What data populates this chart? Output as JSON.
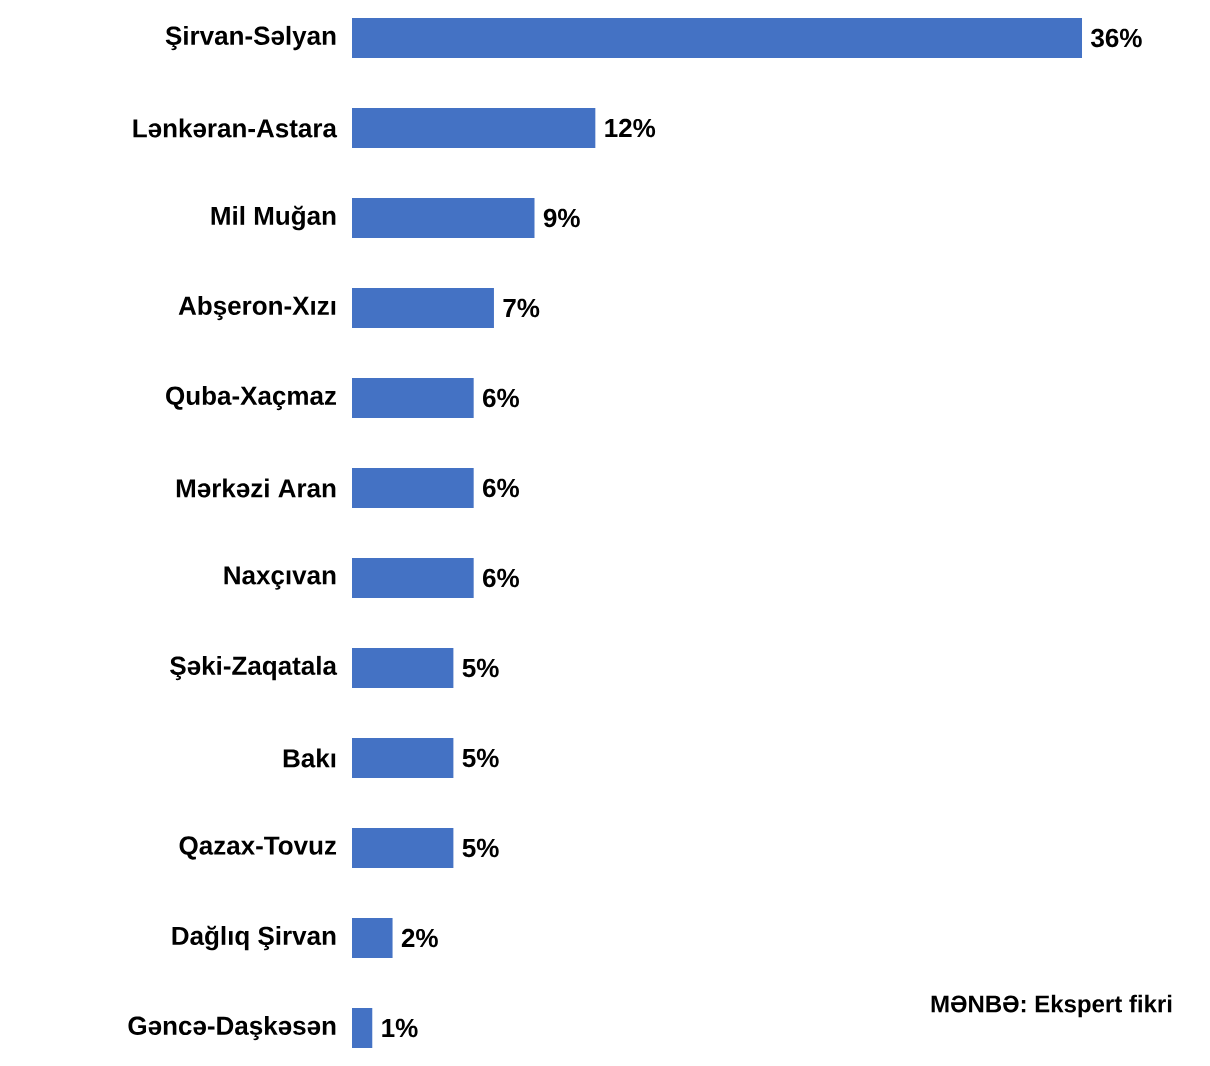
{
  "chart_data": {
    "type": "bar",
    "orientation": "horizontal",
    "categories": [
      "Şirvan-Səlyan",
      "Lənkəran-Astara",
      "Mil Muğan",
      "Abşeron-Xızı",
      "Quba-Xaçmaz",
      "Mərkəzi Aran",
      "Naxçıvan",
      "Şəki-Zaqatala",
      "Bakı",
      "Qazax-Tovuz",
      "Dağlıq Şirvan",
      "Gəncə-Daşkəsən"
    ],
    "values": [
      36,
      12,
      9,
      7,
      6,
      6,
      6,
      5,
      5,
      5,
      2,
      1
    ],
    "value_labels": [
      "36%",
      "12%",
      "9%",
      "7%",
      "6%",
      "6%",
      "6%",
      "5%",
      "5%",
      "5%",
      "2%",
      "1%"
    ],
    "color": "#4472c4",
    "annotations": [
      "MƏNBƏ: Ekspert fikri"
    ]
  }
}
